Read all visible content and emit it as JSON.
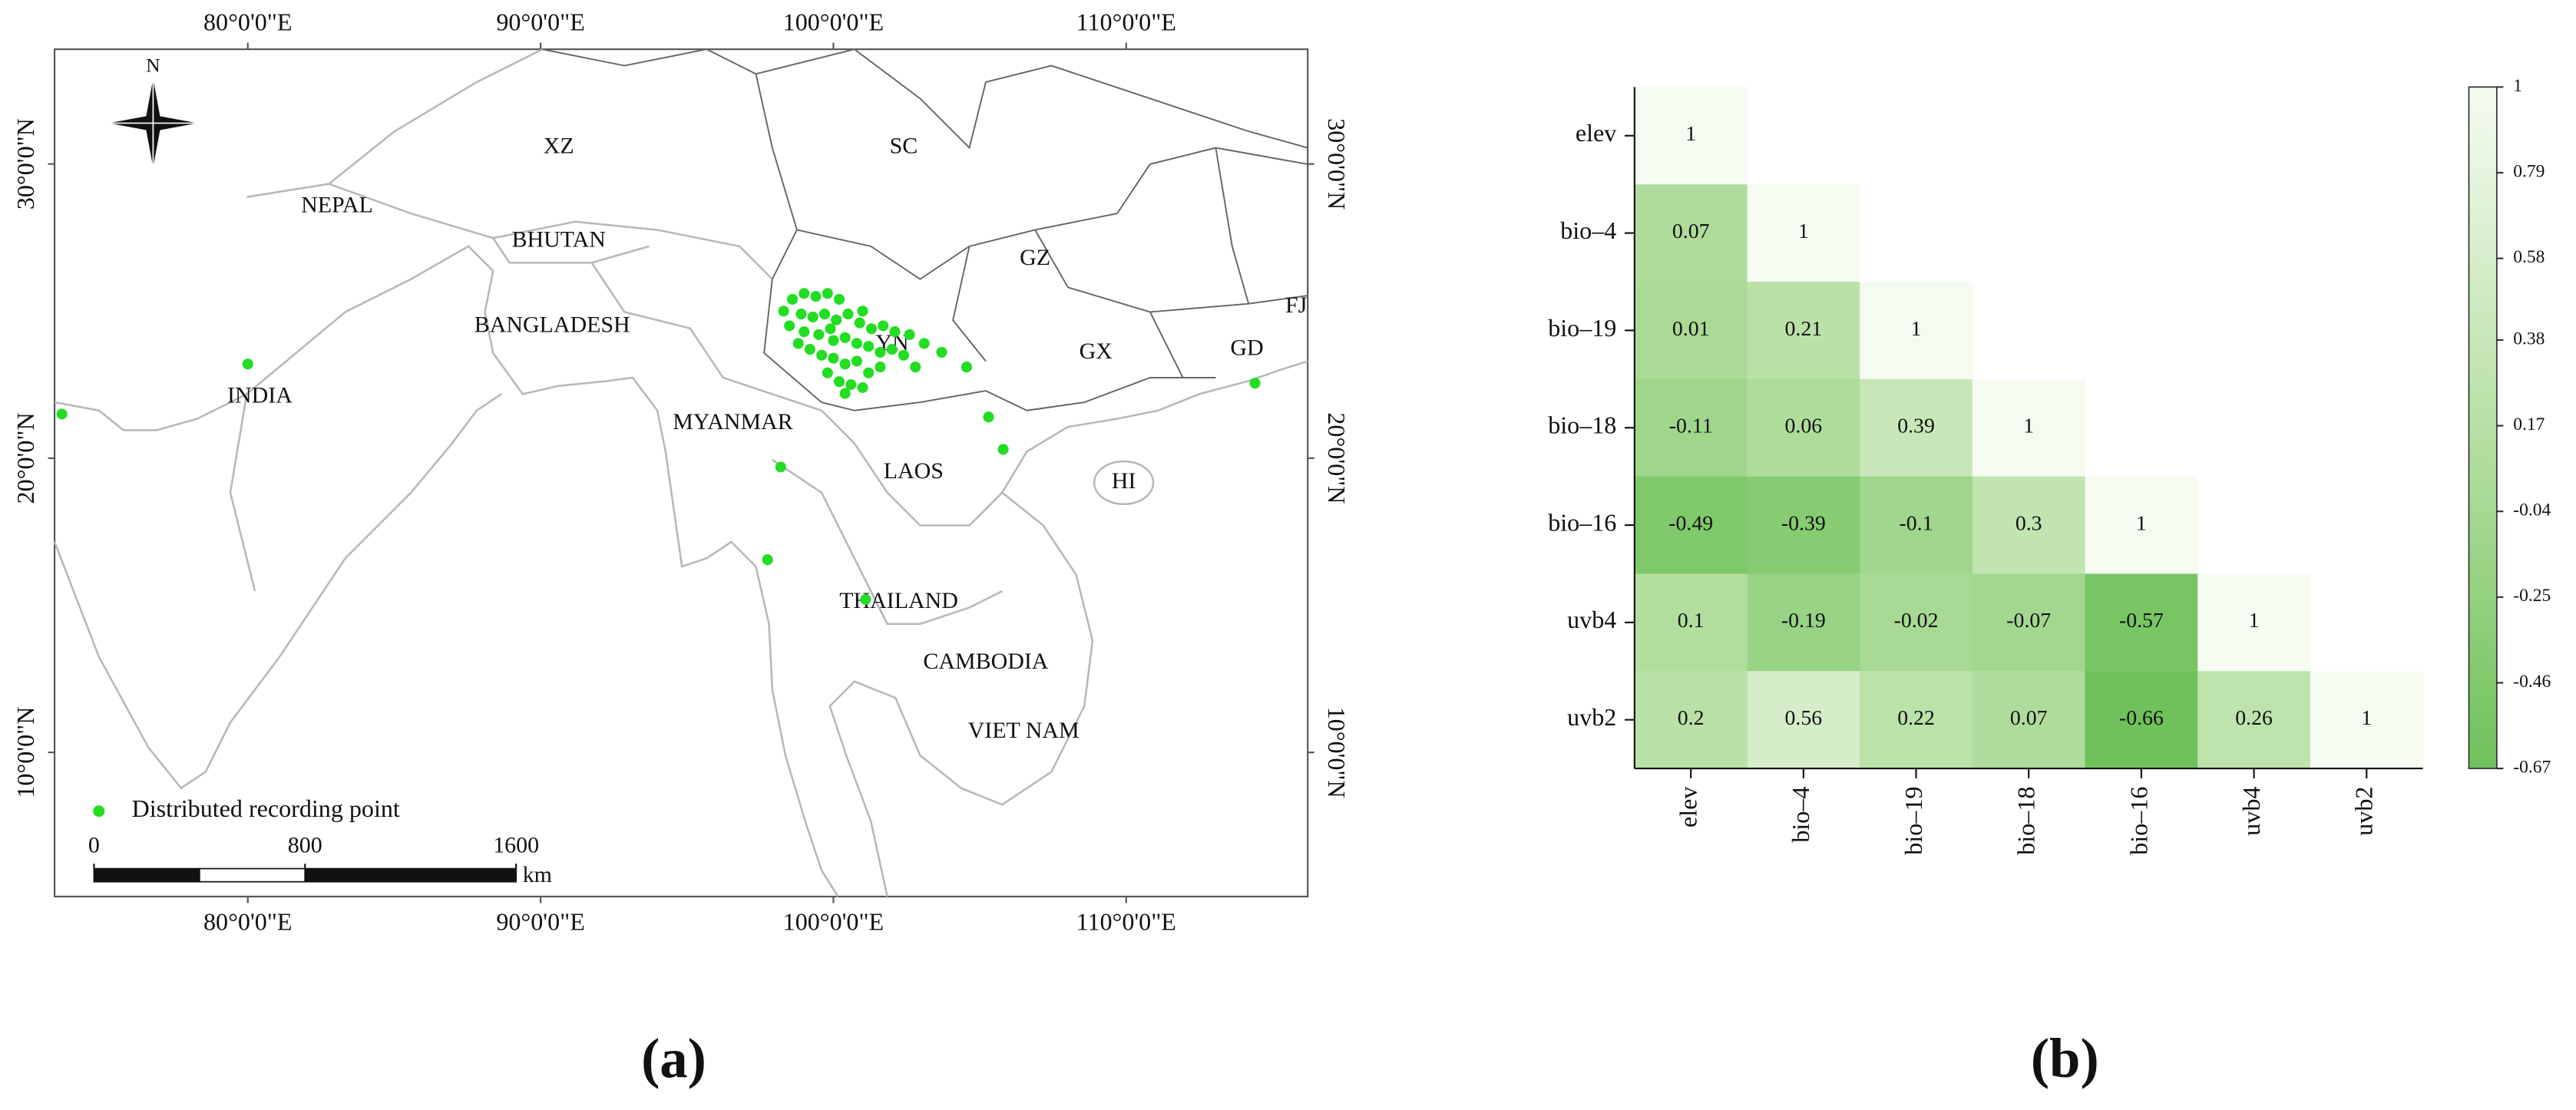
{
  "chart_data": [
    {
      "type": "map",
      "xlim": [
        73.4,
        116.2
      ],
      "ylim": [
        5.1,
        33.9
      ],
      "xticks": [
        {
          "value": 80,
          "label": "80°0'0\"E"
        },
        {
          "value": 90,
          "label": "90°0'0\"E"
        },
        {
          "value": 100,
          "label": "100°0'0\"E"
        },
        {
          "value": 110,
          "label": "110°0'0\"E"
        }
      ],
      "yticks": [
        {
          "value": 10,
          "label": "10°0'0\"N"
        },
        {
          "value": 20,
          "label": "20°0'0\"N"
        },
        {
          "value": 30,
          "label": "30°0'0\"N"
        }
      ],
      "north_label": "N",
      "annotations": [
        "XZ",
        "SC",
        "NEPAL",
        "BHUTAN",
        "GZ",
        "BANGLADESH",
        "YN",
        "GX",
        "GD",
        "FJ",
        "INDIA",
        "MYANMAR",
        "LAOS",
        "HI",
        "THAILAND",
        "CAMBODIA",
        "VIET NAM"
      ],
      "x": [
        73.65,
        80.0,
        98.2,
        97.75,
        101.1,
        105.3,
        105.8,
        114.4,
        104.55,
        98.3,
        98.6,
        99.0,
        99.4,
        99.8,
        100.2,
        98.9,
        99.3,
        99.7,
        100.1,
        100.5,
        100.9,
        101.3,
        101.7,
        102.1,
        102.6,
        103.1,
        98.5,
        99.0,
        99.5,
        100.0,
        100.4,
        100.8,
        101.2,
        101.6,
        102.0,
        102.4,
        99.2,
        99.6,
        100.0,
        100.4,
        100.8,
        101.2,
        101.6,
        99.8,
        100.2,
        100.6,
        101.0,
        100.4,
        103.7,
        102.8,
        98.8,
        99.9,
        101.0
      ],
      "series": [
        {
          "name": "Distributed recording point",
          "color": "#22dd22",
          "values": [
            21.5,
            23.2,
            19.7,
            16.55,
            15.2,
            21.4,
            20.3,
            22.55,
            23.1,
            25.0,
            25.4,
            25.6,
            25.5,
            25.6,
            25.4,
            24.9,
            24.8,
            24.9,
            24.7,
            24.9,
            24.6,
            24.4,
            24.5,
            24.3,
            24.2,
            23.9,
            24.5,
            24.3,
            24.2,
            24.0,
            24.1,
            23.9,
            23.8,
            23.6,
            23.7,
            23.5,
            23.7,
            23.5,
            23.4,
            23.2,
            23.3,
            22.9,
            23.1,
            22.9,
            22.6,
            22.5,
            22.4,
            22.2,
            23.6,
            23.1,
            23.9,
            24.4,
            25.0
          ]
        }
      ],
      "scale_bar": {
        "ticks": [
          0,
          800,
          1600
        ],
        "unit": "km"
      },
      "caption": "(a)"
    },
    {
      "type": "heatmap",
      "categories": [
        "elev",
        "bio–4",
        "bio–19",
        "bio–18",
        "bio–16",
        "uvb4",
        "uvb2"
      ],
      "values": [
        [
          1,
          null,
          null,
          null,
          null,
          null,
          null
        ],
        [
          0.07,
          1,
          null,
          null,
          null,
          null,
          null
        ],
        [
          0.01,
          0.21,
          1,
          null,
          null,
          null,
          null
        ],
        [
          -0.11,
          0.06,
          0.39,
          1,
          null,
          null,
          null
        ],
        [
          -0.49,
          -0.39,
          -0.1,
          0.3,
          1,
          null,
          null
        ],
        [
          0.1,
          -0.19,
          -0.02,
          -0.07,
          -0.57,
          1,
          null
        ],
        [
          0.2,
          0.56,
          0.22,
          0.07,
          -0.66,
          0.26,
          1
        ]
      ],
      "clim": [
        -0.67,
        1
      ],
      "cmap": [
        "#6fc15b",
        "#b7e0a4",
        "#f6fbf2"
      ],
      "colorbar_ticks": [
        1,
        0.79,
        0.58,
        0.38,
        0.17,
        -0.04,
        -0.25,
        -0.46,
        -0.67
      ],
      "caption": "(b)"
    }
  ]
}
